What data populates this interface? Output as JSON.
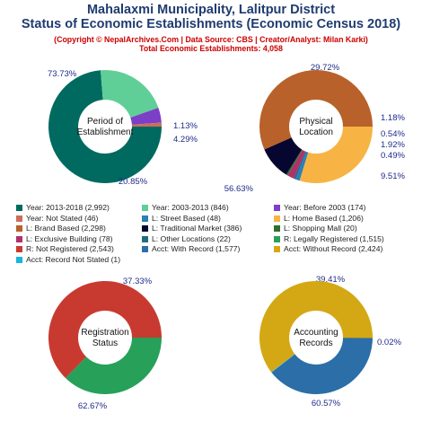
{
  "header": {
    "title_line1": "Mahalaxmi Municipality, Lalitpur District",
    "title_line2": "Status of Economic Establishments (Economic Census 2018)",
    "subtitle_line1": "(Copyright © NepalArchives.Com | Data Source: CBS | Creator/Analyst: Milan Karki)",
    "subtitle_line2": "Total Economic Establishments: 4,058"
  },
  "chart_data": [
    {
      "type": "pie",
      "title": "Period of\nEstablishment",
      "slices": [
        {
          "label": "Year: 2013-2018",
          "value": 2992,
          "percent": "73.73%",
          "color": "#006a60"
        },
        {
          "label": "Year: 2003-2013",
          "value": 846,
          "percent": "20.85%",
          "color": "#5fcf97"
        },
        {
          "label": "Year: Before 2003",
          "value": 174,
          "percent": "4.29%",
          "color": "#7b3fc8"
        },
        {
          "label": "Year: Not Stated",
          "value": 46,
          "percent": "1.13%",
          "color": "#cc6d5c"
        }
      ]
    },
    {
      "type": "pie",
      "title": "Physical\nLocation",
      "slices": [
        {
          "label": "L: Home Based",
          "value": 1206,
          "percent": "29.72%",
          "color": "#f7b445"
        },
        {
          "label": "L: Street Based",
          "value": 48,
          "percent": "1.18%",
          "color": "#2c7fb8"
        },
        {
          "label": "L: Other Locations",
          "value": 22,
          "percent": "0.54%",
          "color": "#236a82"
        },
        {
          "label": "L: Exclusive Building",
          "value": 78,
          "percent": "1.92%",
          "color": "#b0306a"
        },
        {
          "label": "L: Shopping Mall",
          "value": 20,
          "percent": "0.49%",
          "color": "#2e6f2c"
        },
        {
          "label": "L: Traditional Market",
          "value": 386,
          "percent": "9.51%",
          "color": "#060630"
        },
        {
          "label": "L: Brand Based",
          "value": 2298,
          "percent": "56.63%",
          "color": "#b8612a"
        }
      ]
    },
    {
      "type": "pie",
      "title": "Registration\nStatus",
      "slices": [
        {
          "label": "R: Legally Registered",
          "value": 1515,
          "percent": "37.33%",
          "color": "#27a05a"
        },
        {
          "label": "R: Not Registered",
          "value": 2543,
          "percent": "62.67%",
          "color": "#c83a30"
        }
      ]
    },
    {
      "type": "pie",
      "title": "Accounting\nRecords",
      "slices": [
        {
          "label": "Acct: With Record",
          "value": 1577,
          "percent": "39.41%",
          "color": "#2b6ea8"
        },
        {
          "label": "Acct: Record Not Stated",
          "value": 1,
          "percent": "0.02%",
          "color": "#1bb3e0"
        },
        {
          "label": "Acct: Without Record",
          "value": 2424,
          "percent": "60.57%",
          "color": "#d4a814"
        }
      ]
    }
  ],
  "legend": [
    {
      "text": "Year: 2013-2018 (2,992)",
      "color": "#006a60"
    },
    {
      "text": "Year: 2003-2013 (846)",
      "color": "#5fcf97"
    },
    {
      "text": "Year: Before 2003 (174)",
      "color": "#7b3fc8"
    },
    {
      "text": "Year: Not Stated (46)",
      "color": "#cc6d5c"
    },
    {
      "text": "L: Street Based (48)",
      "color": "#2c7fb8"
    },
    {
      "text": "L: Home Based (1,206)",
      "color": "#f7b445"
    },
    {
      "text": "L: Brand Based (2,298)",
      "color": "#b8612a"
    },
    {
      "text": "L: Traditional Market (386)",
      "color": "#060630"
    },
    {
      "text": "L: Shopping Mall (20)",
      "color": "#2e6f2c"
    },
    {
      "text": "L: Exclusive Building (78)",
      "color": "#b0306a"
    },
    {
      "text": "L: Other Locations (22)",
      "color": "#236a82"
    },
    {
      "text": "R: Legally Registered (1,515)",
      "color": "#27a05a"
    },
    {
      "text": "R: Not Registered (2,543)",
      "color": "#c83a30"
    },
    {
      "text": "Acct: With Record (1,577)",
      "color": "#2b6ea8"
    },
    {
      "text": "Acct: Without Record (2,424)",
      "color": "#d4a814"
    },
    {
      "text": "Acct: Record Not Stated (1)",
      "color": "#1bb3e0"
    }
  ]
}
